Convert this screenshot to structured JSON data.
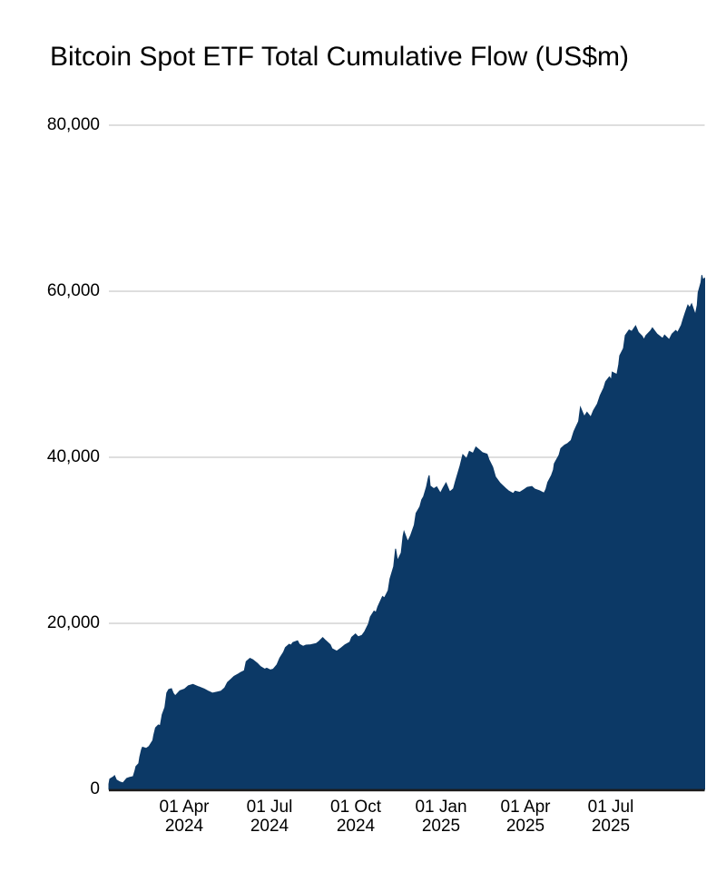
{
  "page": {
    "background": "#ffffff"
  },
  "chart_data": {
    "type": "area",
    "title": "Bitcoin Spot ETF Total Cumulative Flow (US$m)",
    "unit": "US$m",
    "legend": false,
    "grid": true,
    "colors": {
      "area_fill": "#0c3966",
      "gridline": "#d4d4d4",
      "axis_line": "#1c1c1c",
      "text": "#000000"
    },
    "y_axis": {
      "min": 0,
      "max": 80000,
      "tick_interval": 20000,
      "tick_labels": [
        "0",
        "20,000",
        "40,000",
        "60,000",
        "80,000"
      ]
    },
    "x_axis": {
      "ticks": [
        {
          "date": "2024-04-01",
          "line1": "01 Apr",
          "line2": "2024"
        },
        {
          "date": "2024-07-01",
          "line1": "01 Jul",
          "line2": "2024"
        },
        {
          "date": "2024-10-01",
          "line1": "01 Oct",
          "line2": "2024"
        },
        {
          "date": "2025-01-01",
          "line1": "01 Jan",
          "line2": "2025"
        },
        {
          "date": "2025-04-01",
          "line1": "01 Apr",
          "line2": "2025"
        },
        {
          "date": "2025-07-01",
          "line1": "01 Jul",
          "line2": "2025"
        }
      ]
    },
    "series": [
      {
        "name": "Total Cumulative Flow",
        "points": [
          [
            "2024-01-11",
            630
          ],
          [
            "2024-01-12",
            1250
          ],
          [
            "2024-01-16",
            1530
          ],
          [
            "2024-01-17",
            1650
          ],
          [
            "2024-01-19",
            1150
          ],
          [
            "2024-01-23",
            880
          ],
          [
            "2024-01-26",
            780
          ],
          [
            "2024-01-30",
            1320
          ],
          [
            "2024-02-02",
            1440
          ],
          [
            "2024-02-06",
            1550
          ],
          [
            "2024-02-08",
            2300
          ],
          [
            "2024-02-09",
            2760
          ],
          [
            "2024-02-12",
            3120
          ],
          [
            "2024-02-13",
            3900
          ],
          [
            "2024-02-15",
            4820
          ],
          [
            "2024-02-16",
            5080
          ],
          [
            "2024-02-20",
            4940
          ],
          [
            "2024-02-23",
            5180
          ],
          [
            "2024-02-27",
            5900
          ],
          [
            "2024-02-28",
            6520
          ],
          [
            "2024-03-01",
            7420
          ],
          [
            "2024-03-04",
            7760
          ],
          [
            "2024-03-06",
            7680
          ],
          [
            "2024-03-08",
            9010
          ],
          [
            "2024-03-11",
            9880
          ],
          [
            "2024-03-13",
            11620
          ],
          [
            "2024-03-15",
            12030
          ],
          [
            "2024-03-18",
            12130
          ],
          [
            "2024-03-20",
            11560
          ],
          [
            "2024-03-22",
            11280
          ],
          [
            "2024-03-27",
            11880
          ],
          [
            "2024-04-01",
            12080
          ],
          [
            "2024-04-05",
            12480
          ],
          [
            "2024-04-10",
            12650
          ],
          [
            "2024-04-16",
            12360
          ],
          [
            "2024-04-22",
            12100
          ],
          [
            "2024-04-26",
            11850
          ],
          [
            "2024-05-01",
            11600
          ],
          [
            "2024-05-07",
            11750
          ],
          [
            "2024-05-10",
            11830
          ],
          [
            "2024-05-14",
            12230
          ],
          [
            "2024-05-17",
            12900
          ],
          [
            "2024-05-22",
            13400
          ],
          [
            "2024-05-24",
            13620
          ],
          [
            "2024-05-29",
            13930
          ],
          [
            "2024-05-31",
            14080
          ],
          [
            "2024-06-04",
            14300
          ],
          [
            "2024-06-06",
            15400
          ],
          [
            "2024-06-10",
            15780
          ],
          [
            "2024-06-13",
            15620
          ],
          [
            "2024-06-18",
            15180
          ],
          [
            "2024-06-21",
            14820
          ],
          [
            "2024-06-26",
            14480
          ],
          [
            "2024-06-28",
            14600
          ],
          [
            "2024-07-02",
            14380
          ],
          [
            "2024-07-05",
            14480
          ],
          [
            "2024-07-09",
            15020
          ],
          [
            "2024-07-12",
            15820
          ],
          [
            "2024-07-16",
            16520
          ],
          [
            "2024-07-18",
            17080
          ],
          [
            "2024-07-22",
            17480
          ],
          [
            "2024-07-24",
            17380
          ],
          [
            "2024-07-26",
            17680
          ],
          [
            "2024-07-31",
            17900
          ],
          [
            "2024-08-02",
            17480
          ],
          [
            "2024-08-06",
            17230
          ],
          [
            "2024-08-09",
            17380
          ],
          [
            "2024-08-14",
            17420
          ],
          [
            "2024-08-20",
            17560
          ],
          [
            "2024-08-23",
            17820
          ],
          [
            "2024-08-27",
            18280
          ],
          [
            "2024-08-30",
            17940
          ],
          [
            "2024-09-04",
            17420
          ],
          [
            "2024-09-06",
            16950
          ],
          [
            "2024-09-11",
            16640
          ],
          [
            "2024-09-16",
            17060
          ],
          [
            "2024-09-20",
            17420
          ],
          [
            "2024-09-25",
            17740
          ],
          [
            "2024-09-27",
            18320
          ],
          [
            "2024-10-01",
            18720
          ],
          [
            "2024-10-04",
            18380
          ],
          [
            "2024-10-08",
            18560
          ],
          [
            "2024-10-11",
            19020
          ],
          [
            "2024-10-15",
            19940
          ],
          [
            "2024-10-17",
            20760
          ],
          [
            "2024-10-21",
            21480
          ],
          [
            "2024-10-23",
            21320
          ],
          [
            "2024-10-25",
            22020
          ],
          [
            "2024-10-30",
            23240
          ],
          [
            "2024-11-01",
            23060
          ],
          [
            "2024-11-05",
            23940
          ],
          [
            "2024-11-07",
            25340
          ],
          [
            "2024-11-11",
            26840
          ],
          [
            "2024-11-13",
            28980
          ],
          [
            "2024-11-15",
            27560
          ],
          [
            "2024-11-19",
            28480
          ],
          [
            "2024-11-21",
            30480
          ],
          [
            "2024-11-22",
            31060
          ],
          [
            "2024-11-26",
            29860
          ],
          [
            "2024-11-29",
            30560
          ],
          [
            "2024-12-03",
            31840
          ],
          [
            "2024-12-05",
            33260
          ],
          [
            "2024-12-09",
            34060
          ],
          [
            "2024-12-11",
            34880
          ],
          [
            "2024-12-13",
            35280
          ],
          [
            "2024-12-16",
            36420
          ],
          [
            "2024-12-18",
            37480
          ],
          [
            "2024-12-19",
            37820
          ],
          [
            "2024-12-20",
            36560
          ],
          [
            "2024-12-24",
            36220
          ],
          [
            "2024-12-27",
            36440
          ],
          [
            "2024-12-31",
            35680
          ],
          [
            "2025-01-03",
            36340
          ],
          [
            "2025-01-06",
            36920
          ],
          [
            "2025-01-08",
            36380
          ],
          [
            "2025-01-10",
            35840
          ],
          [
            "2025-01-14",
            36220
          ],
          [
            "2025-01-16",
            37080
          ],
          [
            "2025-01-21",
            38960
          ],
          [
            "2025-01-24",
            40320
          ],
          [
            "2025-01-28",
            39840
          ],
          [
            "2025-01-31",
            40720
          ],
          [
            "2025-02-04",
            40480
          ],
          [
            "2025-02-07",
            41240
          ],
          [
            "2025-02-11",
            40860
          ],
          [
            "2025-02-14",
            40560
          ],
          [
            "2025-02-19",
            40380
          ],
          [
            "2025-02-21",
            39720
          ],
          [
            "2025-02-25",
            38820
          ],
          [
            "2025-02-28",
            37640
          ],
          [
            "2025-03-05",
            36880
          ],
          [
            "2025-03-11",
            36240
          ],
          [
            "2025-03-14",
            35960
          ],
          [
            "2025-03-19",
            35640
          ],
          [
            "2025-03-21",
            35920
          ],
          [
            "2025-03-26",
            35780
          ],
          [
            "2025-03-31",
            36140
          ],
          [
            "2025-04-03",
            36380
          ],
          [
            "2025-04-08",
            36480
          ],
          [
            "2025-04-11",
            36180
          ],
          [
            "2025-04-16",
            35980
          ],
          [
            "2025-04-21",
            35680
          ],
          [
            "2025-04-23",
            36160
          ],
          [
            "2025-04-25",
            36980
          ],
          [
            "2025-04-29",
            37840
          ],
          [
            "2025-05-01",
            38480
          ],
          [
            "2025-05-02",
            39240
          ],
          [
            "2025-05-07",
            40260
          ],
          [
            "2025-05-09",
            41060
          ],
          [
            "2025-05-13",
            41480
          ],
          [
            "2025-05-16",
            41640
          ],
          [
            "2025-05-20",
            42060
          ],
          [
            "2025-05-23",
            43120
          ],
          [
            "2025-05-28",
            44340
          ],
          [
            "2025-05-30",
            46020
          ],
          [
            "2025-06-03",
            44920
          ],
          [
            "2025-06-06",
            45420
          ],
          [
            "2025-06-10",
            44840
          ],
          [
            "2025-06-13",
            45640
          ],
          [
            "2025-06-17",
            46420
          ],
          [
            "2025-06-20",
            47420
          ],
          [
            "2025-06-24",
            48380
          ],
          [
            "2025-06-26",
            49120
          ],
          [
            "2025-06-30",
            49680
          ],
          [
            "2025-07-02",
            49340
          ],
          [
            "2025-07-03",
            50260
          ],
          [
            "2025-07-08",
            49980
          ],
          [
            "2025-07-10",
            51180
          ],
          [
            "2025-07-11",
            52240
          ],
          [
            "2025-07-15",
            53120
          ],
          [
            "2025-07-17",
            54680
          ],
          [
            "2025-07-21",
            55340
          ],
          [
            "2025-07-24",
            55160
          ],
          [
            "2025-07-28",
            55820
          ],
          [
            "2025-07-31",
            55060
          ],
          [
            "2025-08-04",
            54580
          ],
          [
            "2025-08-06",
            54180
          ],
          [
            "2025-08-08",
            54660
          ],
          [
            "2025-08-13",
            55240
          ],
          [
            "2025-08-15",
            55580
          ],
          [
            "2025-08-20",
            54840
          ],
          [
            "2025-08-26",
            54320
          ],
          [
            "2025-08-28",
            54720
          ],
          [
            "2025-09-02",
            54160
          ],
          [
            "2025-09-05",
            54840
          ],
          [
            "2025-09-09",
            55280
          ],
          [
            "2025-09-11",
            55040
          ],
          [
            "2025-09-15",
            55920
          ],
          [
            "2025-09-17",
            56640
          ],
          [
            "2025-09-19",
            57360
          ],
          [
            "2025-09-22",
            58340
          ],
          [
            "2025-09-24",
            58020
          ],
          [
            "2025-09-26",
            58480
          ],
          [
            "2025-09-30",
            57180
          ],
          [
            "2025-10-02",
            58340
          ],
          [
            "2025-10-03",
            59840
          ],
          [
            "2025-10-06",
            61060
          ],
          [
            "2025-10-07",
            61940
          ],
          [
            "2025-10-08",
            61420
          ],
          [
            "2025-10-10",
            61560
          ]
        ]
      }
    ]
  }
}
